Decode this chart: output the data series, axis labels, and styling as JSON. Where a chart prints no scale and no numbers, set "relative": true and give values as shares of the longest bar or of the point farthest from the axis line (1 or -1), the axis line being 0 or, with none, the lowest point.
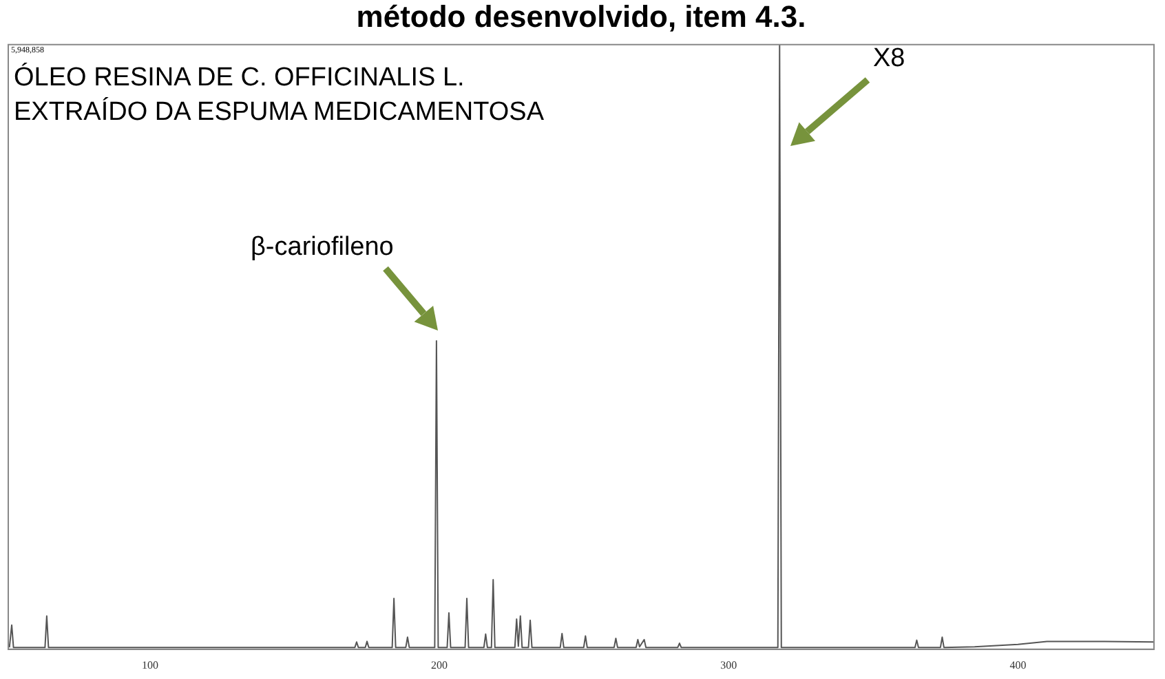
{
  "chart_data": {
    "type": "line",
    "title": "método desenvolvido, item 4.3.",
    "relative": true,
    "legend": false,
    "grid": false,
    "marker": "none",
    "line_style": "solid",
    "xlim": [
      51,
      447
    ],
    "xticks": [
      100,
      200,
      300,
      400
    ],
    "annotations": [
      "5,948,858",
      "ÓLEO RESINA DE C. OFFICINALIS L.",
      "EXTRAÍDO DA ESPUMA MEDICAMENTOSA",
      "β-cariofileno",
      "X8"
    ],
    "series": [
      {
        "color": "#555555",
        "x": [
          51.4,
          52.2,
          52.8,
          63.7,
          64.3,
          64.9,
          170.8,
          171.4,
          172,
          174.4,
          175,
          175.6,
          183.7,
          184.3,
          184.9,
          188.4,
          189,
          189.6,
          198.4,
          199,
          199.6,
          202.7,
          203.3,
          203.9,
          208.9,
          209.5,
          210.1,
          215.4,
          216,
          216.6,
          218,
          218.6,
          219.2,
          226.1,
          226.7,
          227.3,
          228,
          228.6,
          230.8,
          231.4,
          232,
          241.8,
          242.4,
          243,
          249.9,
          250.5,
          251.1,
          260.4,
          261,
          261.6,
          268,
          268.6,
          269.2,
          270.8,
          271.4,
          282.4,
          283,
          283.6,
          317,
          317.6,
          318.2,
          364.4,
          365,
          365.6,
          373.2,
          373.8,
          374.4,
          385,
          400,
          410,
          430,
          447
        ],
        "values": [
          0.003,
          0.04,
          0.003,
          0.003,
          0.055,
          0.003,
          0.003,
          0.012,
          0.003,
          0.003,
          0.013,
          0.003,
          0.003,
          0.084,
          0.003,
          0.003,
          0.02,
          0.003,
          0.003,
          0.51,
          0.003,
          0.003,
          0.06,
          0.003,
          0.003,
          0.084,
          0.003,
          0.003,
          0.025,
          0.003,
          0.003,
          0.115,
          0.003,
          0.003,
          0.05,
          0.005,
          0.055,
          0.003,
          0.003,
          0.048,
          0.003,
          0.003,
          0.026,
          0.003,
          0.003,
          0.022,
          0.003,
          0.003,
          0.018,
          0.003,
          0.003,
          0.016,
          0.004,
          0.016,
          0.003,
          0.003,
          0.01,
          0.003,
          0.003,
          1,
          0.003,
          0.003,
          0.015,
          0.003,
          0.003,
          0.02,
          0.003,
          0.004,
          0.008,
          0.013,
          0.013,
          0.012
        ]
      }
    ]
  }
}
